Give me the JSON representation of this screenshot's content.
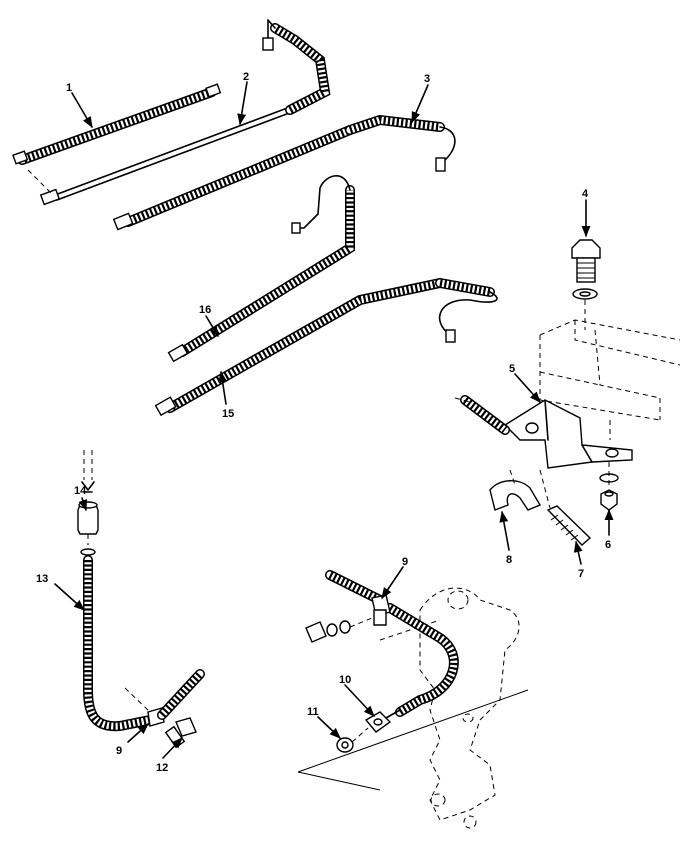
{
  "callouts": [
    "1",
    "2",
    "3",
    "4",
    "5",
    "6",
    "7",
    "8",
    "9",
    "9",
    "10",
    "11",
    "12",
    "13",
    "14",
    "15",
    "16"
  ]
}
